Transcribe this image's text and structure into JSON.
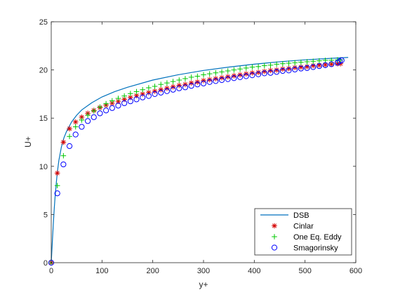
{
  "chart_data": {
    "type": "line",
    "title": "",
    "xlabel": "y+",
    "ylabel": "U+",
    "xlim": [
      0,
      600
    ],
    "ylim": [
      0,
      25
    ],
    "xticks": [
      "0",
      "100",
      "200",
      "300",
      "400",
      "500",
      "600"
    ],
    "yticks": [
      "0",
      "5",
      "10",
      "15",
      "20",
      "25"
    ],
    "grid": false,
    "legend_position": "bottom-right",
    "series": [
      {
        "name": "DSB",
        "style": "line",
        "color": "#0072bd",
        "x": [
          0,
          1,
          2,
          3,
          4,
          5,
          6,
          7,
          8,
          10,
          12,
          15,
          20,
          25,
          30,
          40,
          50,
          60,
          80,
          100,
          125,
          150,
          200,
          250,
          300,
          350,
          400,
          450,
          500,
          550,
          585
        ],
        "y": [
          0,
          1.0,
          2.0,
          2.95,
          3.9,
          4.8,
          5.65,
          6.4,
          7.1,
          8.3,
          9.35,
          10.6,
          12.0,
          12.95,
          13.6,
          14.6,
          15.3,
          15.85,
          16.6,
          17.2,
          17.75,
          18.2,
          18.95,
          19.5,
          19.95,
          20.3,
          20.6,
          20.85,
          21.05,
          21.2,
          21.3
        ]
      },
      {
        "name": "Cinlar",
        "style": "asterisk",
        "color": "#d40000",
        "x": [
          0,
          12,
          24,
          36,
          48,
          60,
          72,
          84,
          96,
          108,
          120,
          132,
          144,
          156,
          168,
          180,
          192,
          204,
          216,
          228,
          240,
          252,
          264,
          276,
          288,
          300,
          312,
          324,
          336,
          348,
          360,
          372,
          384,
          396,
          408,
          420,
          432,
          444,
          456,
          468,
          480,
          492,
          504,
          516,
          528,
          540,
          552,
          564,
          570
        ],
        "y": [
          0,
          9.3,
          12.5,
          13.9,
          14.6,
          15.1,
          15.5,
          15.8,
          16.1,
          16.35,
          16.55,
          16.75,
          16.95,
          17.15,
          17.35,
          17.5,
          17.65,
          17.8,
          17.95,
          18.1,
          18.25,
          18.4,
          18.5,
          18.65,
          18.75,
          18.9,
          19.0,
          19.1,
          19.2,
          19.3,
          19.4,
          19.5,
          19.6,
          19.7,
          19.75,
          19.85,
          19.95,
          20.0,
          20.1,
          20.15,
          20.25,
          20.3,
          20.35,
          20.45,
          20.5,
          20.55,
          20.6,
          20.65,
          20.65
        ]
      },
      {
        "name": "One Eq. Eddy",
        "style": "plus",
        "color": "#00c800",
        "x": [
          0,
          12,
          24,
          36,
          48,
          60,
          72,
          84,
          96,
          108,
          120,
          132,
          144,
          156,
          168,
          180,
          192,
          204,
          216,
          228,
          240,
          252,
          264,
          276,
          288,
          300,
          312,
          324,
          336,
          348,
          360,
          372,
          384,
          396,
          408,
          420,
          432,
          444,
          456,
          468,
          480,
          492,
          504,
          516,
          528,
          540,
          552,
          564,
          570
        ],
        "y": [
          0,
          8.0,
          11.1,
          13.1,
          14.1,
          14.8,
          15.3,
          15.75,
          16.15,
          16.5,
          16.8,
          17.05,
          17.3,
          17.55,
          17.75,
          17.95,
          18.15,
          18.3,
          18.5,
          18.65,
          18.8,
          18.95,
          19.1,
          19.25,
          19.35,
          19.5,
          19.6,
          19.7,
          19.8,
          19.9,
          20.0,
          20.1,
          20.2,
          20.3,
          20.35,
          20.45,
          20.5,
          20.6,
          20.65,
          20.7,
          20.75,
          20.8,
          20.85,
          20.9,
          20.95,
          21.0,
          21.0,
          21.05,
          21.05
        ]
      },
      {
        "name": "Smagorinsky",
        "style": "circle",
        "color": "#0000ff",
        "x": [
          0,
          12,
          24,
          36,
          48,
          60,
          72,
          84,
          96,
          108,
          120,
          132,
          144,
          156,
          168,
          180,
          192,
          204,
          216,
          228,
          240,
          252,
          264,
          276,
          288,
          300,
          312,
          324,
          336,
          348,
          360,
          372,
          384,
          396,
          408,
          420,
          432,
          444,
          456,
          468,
          480,
          492,
          504,
          516,
          528,
          540,
          552,
          564,
          568,
          572
        ],
        "y": [
          0,
          7.2,
          10.2,
          12.1,
          13.3,
          14.1,
          14.7,
          15.1,
          15.5,
          15.8,
          16.05,
          16.3,
          16.55,
          16.75,
          16.95,
          17.15,
          17.3,
          17.5,
          17.65,
          17.8,
          17.95,
          18.1,
          18.2,
          18.35,
          18.5,
          18.6,
          18.75,
          18.85,
          18.95,
          19.05,
          19.15,
          19.25,
          19.35,
          19.45,
          19.55,
          19.65,
          19.7,
          19.8,
          19.9,
          19.95,
          20.05,
          20.15,
          20.2,
          20.3,
          20.4,
          20.5,
          20.6,
          20.75,
          20.9,
          21.0
        ]
      }
    ]
  }
}
